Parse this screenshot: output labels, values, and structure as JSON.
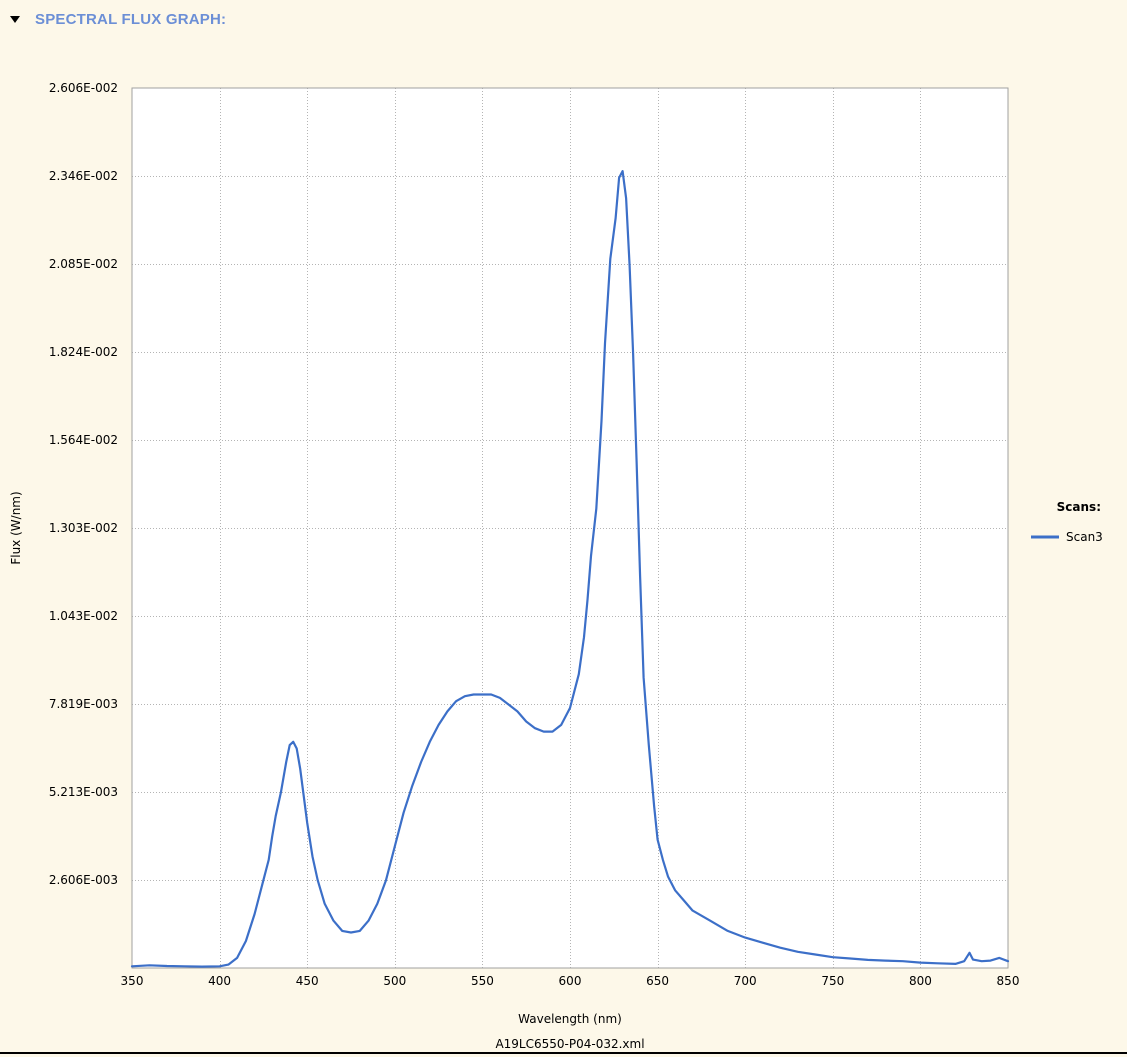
{
  "header": {
    "title": "SPECTRAL FLUX GRAPH:"
  },
  "file": {
    "name": "A19LC6550-P04-032.xml"
  },
  "colors": {
    "series": "#3c6fc8",
    "grid": "#b4b4b4",
    "plot_bg": "#ffffff",
    "page_bg": "#fdf8e9",
    "header_text": "#6c8fd6"
  },
  "chart_data": {
    "type": "line",
    "xlabel": "Wavelength (nm)",
    "ylabel": "Flux (W/nm)",
    "xlim": [
      350,
      850
    ],
    "ylim": [
      0,
      0.02606
    ],
    "x_ticks": [
      350,
      400,
      450,
      500,
      550,
      600,
      650,
      700,
      750,
      800,
      850
    ],
    "y_ticks": [
      0.002606,
      0.005213,
      0.007819,
      0.01043,
      0.01303,
      0.01564,
      0.01824,
      0.02085,
      0.02346,
      0.02606
    ],
    "y_tick_labels": [
      "2.606E-003",
      "5.213E-003",
      "7.819E-003",
      "1.043E-002",
      "1.303E-002",
      "1.564E-002",
      "1.824E-002",
      "2.085E-002",
      "2.346E-002",
      "2.606E-002"
    ],
    "grid": true,
    "legend": {
      "title": "Scans:",
      "placement": "right"
    },
    "series": [
      {
        "name": "Scan3",
        "x": [
          350,
          360,
          370,
          380,
          390,
          400,
          405,
          410,
          415,
          420,
          425,
          428,
          430,
          432,
          435,
          438,
          440,
          442,
          444,
          446,
          448,
          450,
          453,
          456,
          460,
          465,
          470,
          475,
          480,
          485,
          490,
          495,
          500,
          505,
          510,
          515,
          520,
          525,
          530,
          535,
          540,
          545,
          550,
          555,
          560,
          565,
          570,
          575,
          580,
          585,
          590,
          595,
          600,
          605,
          608,
          610,
          612,
          615,
          618,
          620,
          623,
          626,
          628,
          630,
          632,
          634,
          636,
          638,
          640,
          642,
          645,
          648,
          650,
          653,
          656,
          660,
          665,
          670,
          680,
          690,
          700,
          710,
          720,
          730,
          740,
          750,
          760,
          770,
          780,
          790,
          800,
          810,
          820,
          825,
          828,
          830,
          835,
          840,
          845,
          850
        ],
        "y": [
          5e-05,
          8e-05,
          6e-05,
          5e-05,
          4e-05,
          5e-05,
          0.0001,
          0.0003,
          0.0008,
          0.0016,
          0.0026,
          0.0032,
          0.0039,
          0.0045,
          0.0052,
          0.0061,
          0.0066,
          0.0067,
          0.0065,
          0.0059,
          0.0051,
          0.0043,
          0.0033,
          0.0026,
          0.0019,
          0.0014,
          0.0011,
          0.00105,
          0.0011,
          0.0014,
          0.0019,
          0.0026,
          0.0036,
          0.0046,
          0.0054,
          0.0061,
          0.0067,
          0.0072,
          0.0076,
          0.0079,
          0.00805,
          0.0081,
          0.0081,
          0.0081,
          0.008,
          0.0078,
          0.0076,
          0.0073,
          0.0071,
          0.007,
          0.007,
          0.0072,
          0.0077,
          0.0087,
          0.0098,
          0.0109,
          0.0122,
          0.0136,
          0.0162,
          0.0185,
          0.021,
          0.0222,
          0.0234,
          0.0236,
          0.0228,
          0.0208,
          0.0182,
          0.015,
          0.0116,
          0.0086,
          0.0066,
          0.0048,
          0.0038,
          0.0032,
          0.0027,
          0.0023,
          0.002,
          0.0017,
          0.0014,
          0.0011,
          0.0009,
          0.00075,
          0.0006,
          0.00048,
          0.0004,
          0.00032,
          0.00028,
          0.00024,
          0.00022,
          0.0002,
          0.00016,
          0.00014,
          0.00012,
          0.0002,
          0.00045,
          0.00025,
          0.0002,
          0.00022,
          0.0003,
          0.0002
        ]
      }
    ]
  }
}
